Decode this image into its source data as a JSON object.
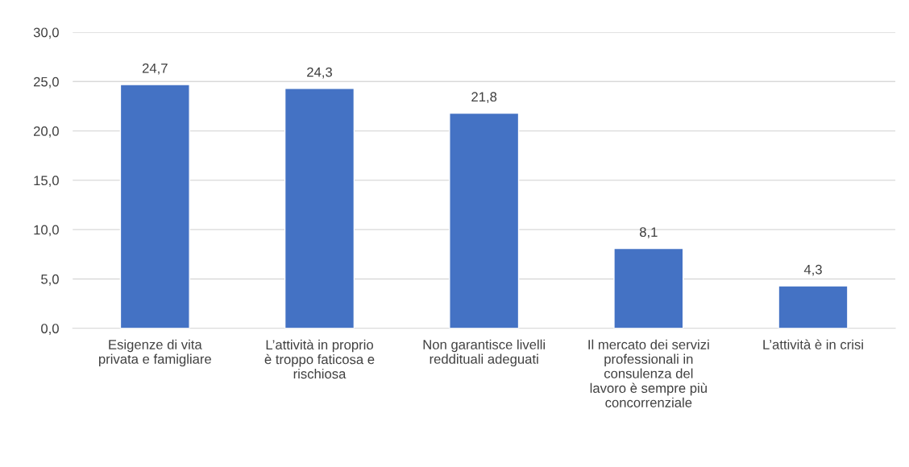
{
  "chart_data": {
    "type": "bar",
    "categories": [
      "Esigenze di vita\nprivata e famigliare",
      "L’attività in proprio\nè troppo faticosa e\nrischiosa",
      "Non garantisce livelli\nreddituali adeguati",
      "Il mercato dei servizi\nprofessionali in\nconsulenza del\nlavoro è sempre più\nconcorrenziale",
      "L’attività è in crisi"
    ],
    "values": [
      24.7,
      24.3,
      21.8,
      8.1,
      4.3
    ],
    "value_labels": [
      "24,7",
      "24,3",
      "21,8",
      "8,1",
      "4,3"
    ],
    "color": "#4472c4",
    "ylim": [
      0,
      30
    ],
    "yticks": [
      {
        "value": 0,
        "label": "0,0"
      },
      {
        "value": 5,
        "label": "5,0"
      },
      {
        "value": 10,
        "label": "10,0"
      },
      {
        "value": 15,
        "label": "15,0"
      },
      {
        "value": 20,
        "label": "20,0"
      },
      {
        "value": 25,
        "label": "25,0"
      },
      {
        "value": 30,
        "label": "30,0"
      }
    ],
    "grid": "y"
  }
}
